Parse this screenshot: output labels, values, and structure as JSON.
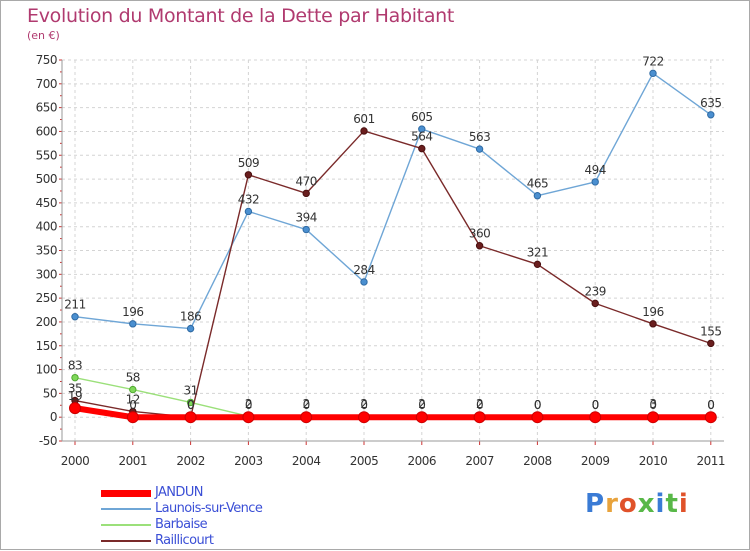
{
  "title": "Evolution du Montant de la Dette par Habitant",
  "subtitle": "(en €)",
  "logo_text": "Proxiti",
  "chart_data": {
    "type": "line",
    "title": "Evolution du Montant de la Dette par Habitant",
    "ylabel": "(en €)",
    "categories": [
      "2000",
      "2001",
      "2002",
      "2003",
      "2004",
      "2005",
      "2006",
      "2007",
      "2008",
      "2009",
      "2010",
      "2011"
    ],
    "ylim": [
      -50,
      750
    ],
    "yticks": [
      "-50",
      "0",
      "50",
      "100",
      "150",
      "200",
      "250",
      "300",
      "350",
      "400",
      "450",
      "500",
      "550",
      "600",
      "650",
      "700",
      "750"
    ],
    "grid": true,
    "legend_placement": "bottom-left",
    "series": [
      {
        "name": "JANDUN",
        "color": "#ff0000",
        "values": [
          19,
          0,
          0,
          0,
          0,
          0,
          0,
          0,
          0,
          0,
          0,
          0
        ],
        "labels": [
          "19",
          "0",
          "0",
          "0",
          "0",
          "0",
          "0",
          "0",
          "0",
          "0",
          "0",
          "0"
        ]
      },
      {
        "name": "Launois-sur-Vence",
        "color": "#6fa6d6",
        "values": [
          211,
          196,
          186,
          432,
          394,
          284,
          605,
          563,
          465,
          494,
          722,
          635
        ],
        "labels": [
          "211",
          "196",
          "186",
          "432",
          "394",
          "284",
          "605",
          "563",
          "465",
          "494",
          "722",
          "635"
        ]
      },
      {
        "name": "Barbaise",
        "color": "#9be07a",
        "values": [
          83,
          58,
          31,
          2,
          2,
          2,
          2,
          2,
          0,
          0,
          3,
          0
        ],
        "labels": [
          "83",
          "58",
          "31",
          "2",
          "2",
          "2",
          "2",
          "2",
          "0",
          "0",
          "3",
          "0"
        ]
      },
      {
        "name": "Raillicourt",
        "color": "#7a2a2a",
        "values": [
          35,
          12,
          0,
          509,
          470,
          601,
          564,
          360,
          321,
          239,
          196,
          155
        ],
        "labels": [
          "35",
          "12",
          "0",
          "509",
          "470",
          "601",
          "564",
          "360",
          "321",
          "239",
          "196",
          "155"
        ]
      }
    ]
  }
}
